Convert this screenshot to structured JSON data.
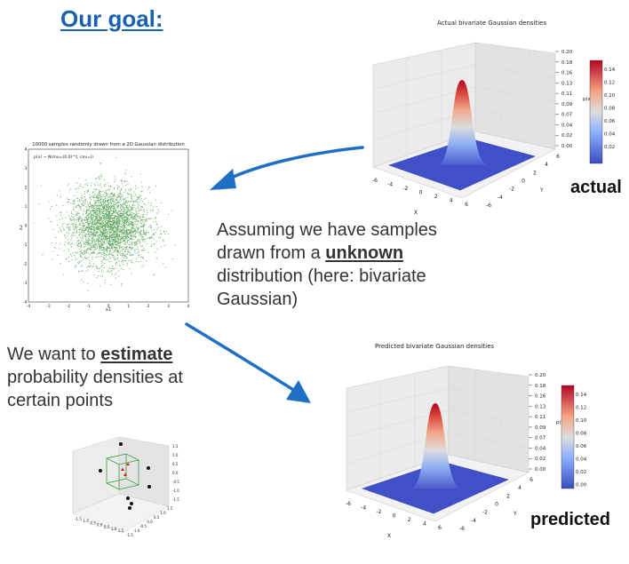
{
  "title": "Our goal:",
  "caption1": {
    "pre": "Assuming we have samples drawn from a ",
    "emph": "unknown",
    "post": " distribution (here: bivariate Gaussian)"
  },
  "caption2": {
    "pre": "We want to ",
    "emph": "estimate",
    "post": " probability densities at certain points"
  },
  "actual_label": "actual",
  "predicted_label": "predicted",
  "colors": {
    "title": "#1a62b0",
    "arrow": "#1f6fc4",
    "scatter": "#2e8b2e",
    "surface_low": "#3b4cc0",
    "surface_high": "#b40426"
  },
  "chart_data": [
    {
      "type": "scatter",
      "title": "10000 samples randomly drawn from a 2D Gaussian distribution",
      "annotation": "p(x) ~ N(mu=(0,0)^t, cov=I)",
      "n_samples": 10000,
      "xlabel": "x1",
      "ylabel": "x2",
      "xlim": [
        -4,
        4
      ],
      "ylim": [
        -4,
        4
      ],
      "xticks": [
        "-4",
        "-3",
        "-2",
        "-1",
        "0",
        "1",
        "2",
        "3",
        "4"
      ],
      "yticks": [
        "4",
        "3",
        "2",
        "1",
        "0",
        "-1",
        "-2",
        "-3",
        "-4"
      ],
      "series": [
        {
          "color": "#2e8b2e"
        }
      ]
    },
    {
      "type": "surface",
      "title": "Actual bivariate Gaussian densities",
      "zlabel": "p(x)",
      "xlabel": "X",
      "ylabel": "Y",
      "zticks": [
        "0.20",
        "0.18",
        "0.16",
        "0.13",
        "0.11",
        "0.09",
        "0.07",
        "0.04",
        "0.02",
        "0.00"
      ],
      "colorbar_ticks": [
        "0.14",
        "0.12",
        "0.10",
        "0.08",
        "0.06",
        "0.04",
        "0.02"
      ],
      "xticks": [
        "-6",
        "-4",
        "-2",
        "0",
        "2",
        "4",
        "6"
      ],
      "yticks": [
        "6",
        "4",
        "2",
        "0",
        "-2",
        "-4",
        "-6"
      ]
    },
    {
      "type": "surface",
      "title": "Predicted bivariate Gaussian densities",
      "zlabel": "p(x)",
      "xlabel": "X",
      "ylabel": "Y",
      "zticks": [
        "0.20",
        "0.18",
        "0.16",
        "0.13",
        "0.11",
        "0.09",
        "0.07",
        "0.04",
        "0.02",
        "0.00"
      ],
      "colorbar_ticks": [
        "0.14",
        "0.12",
        "0.10",
        "0.08",
        "0.06",
        "0.04",
        "0.02",
        "0.00"
      ],
      "xticks": [
        "-6",
        "-4",
        "-2",
        "0",
        "2",
        "4",
        "6"
      ],
      "yticks": [
        "6",
        "4",
        "2",
        "0",
        "-2",
        "-4",
        "-6"
      ]
    }
  ],
  "cube_plot": {
    "ticks": [
      "-1.5",
      "-1.0",
      "-0.5",
      "0.0",
      "0.5",
      "1.0",
      "1.5"
    ]
  }
}
